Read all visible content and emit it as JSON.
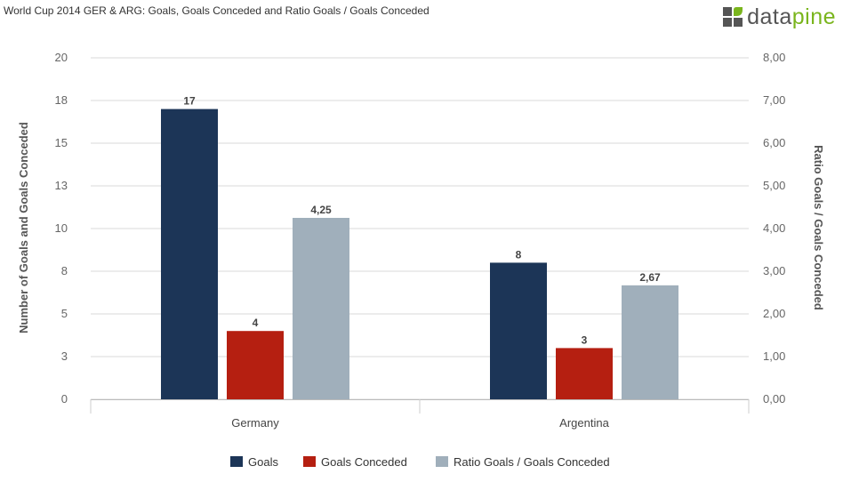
{
  "title": "World Cup 2014 GER & ARG: Goals, Goals Conceded and Ratio Goals / Goals Conceded",
  "logo": {
    "text_main": "data",
    "text_accent": "pine"
  },
  "colors": {
    "goals": "#1c3557",
    "goals_conceded": "#b51f11",
    "ratio": "#a0afbb",
    "logo_green": "#7ab51d"
  },
  "chart_data": {
    "type": "bar",
    "categories": [
      "Germany",
      "Argentina"
    ],
    "series": [
      {
        "name": "Goals",
        "axis": "left",
        "values": [
          17,
          8
        ],
        "labels": [
          "17",
          "8"
        ]
      },
      {
        "name": "Goals Conceded",
        "axis": "left",
        "values": [
          4,
          3
        ],
        "labels": [
          "4",
          "3"
        ]
      },
      {
        "name": "Ratio Goals / Goals Conceded",
        "axis": "right",
        "values": [
          4.25,
          2.67
        ],
        "labels": [
          "4,25",
          "2,67"
        ]
      }
    ],
    "ylabel": "Number of Goals and Goals Conceded",
    "y2label": "Ratio Goals / Goals Conceded",
    "ylim": [
      0,
      20
    ],
    "y2lim": [
      0,
      8
    ],
    "yticks": [
      "0",
      "3",
      "5",
      "8",
      "10",
      "13",
      "15",
      "18",
      "20"
    ],
    "y2ticks": [
      "0,00",
      "1,00",
      "2,00",
      "3,00",
      "4,00",
      "5,00",
      "6,00",
      "7,00",
      "8,00"
    ],
    "grid": true,
    "legend": "bottom-center"
  }
}
